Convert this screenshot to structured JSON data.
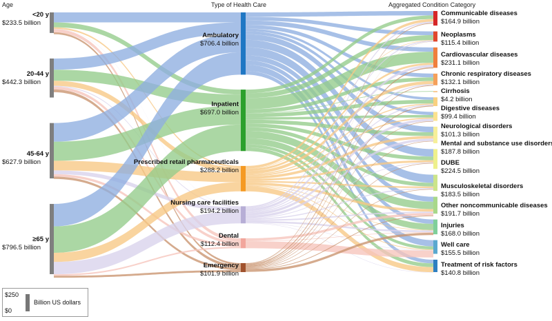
{
  "chart_data": {
    "type": "sankey",
    "headers": [
      "Age",
      "Type of Health Care",
      "Aggregated Condition Category"
    ],
    "units": "Billion US dollars",
    "legend": {
      "top": "$250",
      "bottom": "$0",
      "label": "Billion US dollars",
      "max": 250
    },
    "ages": [
      {
        "name": "<20 y",
        "value_label": "$233.5 billion",
        "value": 233.5,
        "color": "#7f7f7f"
      },
      {
        "name": "20-44 y",
        "value_label": "$442.3 billion",
        "value": 442.3,
        "color": "#7f7f7f"
      },
      {
        "name": "45-64 y",
        "value_label": "$627.9 billion",
        "value": 627.9,
        "color": "#7f7f7f"
      },
      {
        "name": "≥65 y",
        "value_label": "$796.5 billion",
        "value": 796.5,
        "color": "#7f7f7f"
      }
    ],
    "care_types": [
      {
        "name": "Ambulatory",
        "value_label": "$706.4 billion",
        "value": 706.4,
        "color": "#1f77c4",
        "link": "#8eaee0"
      },
      {
        "name": "Inpatient",
        "value_label": "$697.0 billion",
        "value": 697.0,
        "color": "#2ca02c",
        "link": "#93cc8a"
      },
      {
        "name": "Prescribed retail pharmaceuticals",
        "value_label": "$288.2 billion",
        "value": 288.2,
        "color": "#f59a23",
        "link": "#f7c884"
      },
      {
        "name": "Nursing care facilities",
        "value_label": "$194.2 billion",
        "value": 194.2,
        "color": "#b7aed6",
        "link": "#d9d2ec"
      },
      {
        "name": "Dental",
        "value_label": "$112.4 billion",
        "value": 112.4,
        "color": "#f2a69c",
        "link": "#f6c4bb"
      },
      {
        "name": "Emergency",
        "value_label": "$101.9 billion",
        "value": 101.9,
        "color": "#a0522d",
        "link": "#c9946e"
      }
    ],
    "conditions": [
      {
        "name": "Communicable diseases",
        "value_label": "$164.9 billion",
        "value": 164.9,
        "color": "#d62728"
      },
      {
        "name": "Neoplasms",
        "value_label": "$115.4 billion",
        "value": 115.4,
        "color": "#e0472e"
      },
      {
        "name": "Cardiovascular diseases",
        "value_label": "$231.1 billion",
        "value": 231.1,
        "color": "#f07f3c"
      },
      {
        "name": "Chronic respiratory diseases",
        "value_label": "$132.1 billion",
        "value": 132.1,
        "color": "#f5a05a"
      },
      {
        "name": "Cirrhosis",
        "value_label": "$4.2 billion",
        "value": 4.2,
        "color": "#f7b870"
      },
      {
        "name": "Digestive diseases",
        "value_label": "$99.4 billion",
        "value": 99.4,
        "color": "#f9d07f"
      },
      {
        "name": "Neurological disorders",
        "value_label": "$101.3 billion",
        "value": 101.3,
        "color": "#fbe28f"
      },
      {
        "name": "Mental and substance use disorders",
        "value_label": "$187.8 billion",
        "value": 187.8,
        "color": "#f6ef9a"
      },
      {
        "name": "DUBE",
        "value_label": "$224.5 billion",
        "value": 224.5,
        "color": "#eef08c"
      },
      {
        "name": "Musculoskeletal disorders",
        "value_label": "$183.5 billion",
        "value": 183.5,
        "color": "#cce48a"
      },
      {
        "name": "Other noncommunicable diseases",
        "value_label": "$191.7 billion",
        "value": 191.7,
        "color": "#a8d88a"
      },
      {
        "name": "Injuries",
        "value_label": "$168.0 billion",
        "value": 168.0,
        "color": "#7fcf9a"
      },
      {
        "name": "Well care",
        "value_label": "$155.5 billion",
        "value": 155.5,
        "color": "#5aa8cf"
      },
      {
        "name": "Treatment of risk factors",
        "value_label": "$140.8 billion",
        "value": 140.8,
        "color": "#2f7fc1"
      }
    ]
  }
}
